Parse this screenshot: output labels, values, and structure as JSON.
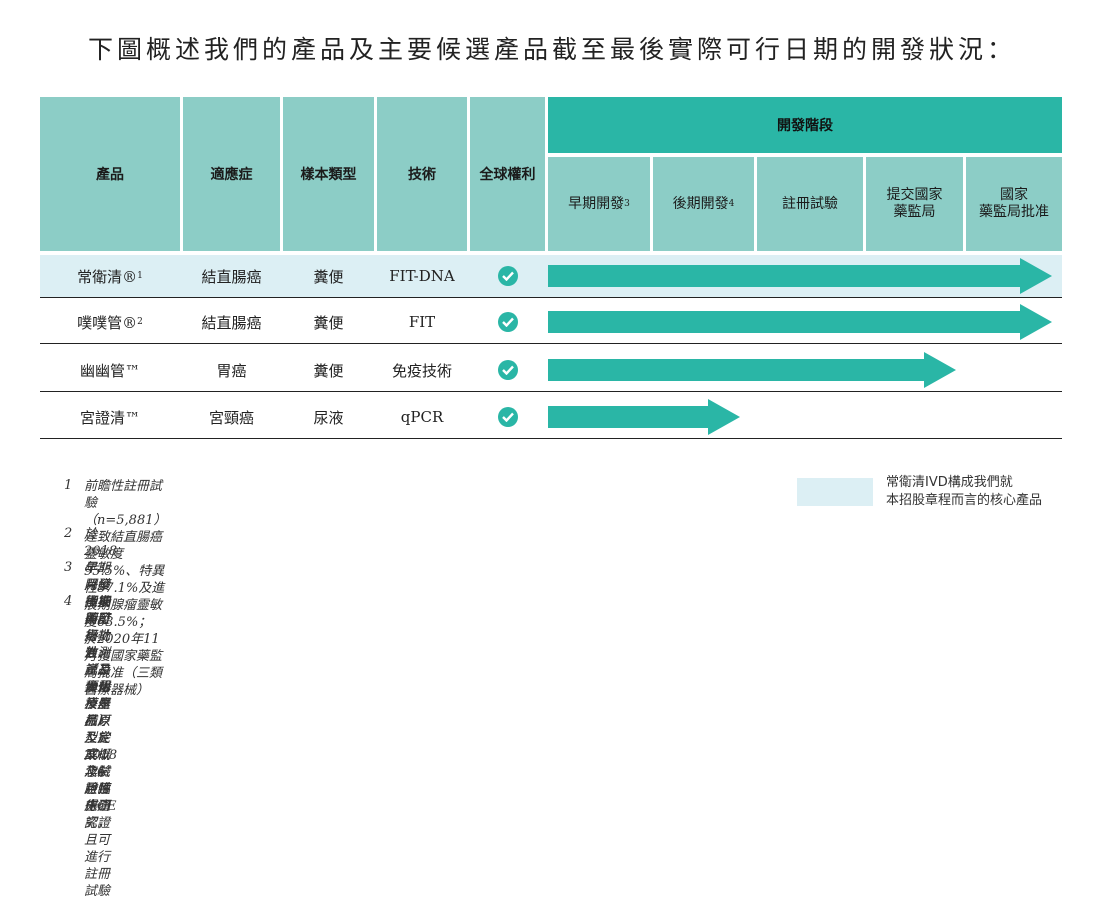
{
  "title": "下圖概述我們的產品及主要候選產品截至最後實際可行日期的開發狀況：",
  "headers": {
    "product": "產品",
    "indication": "適應症",
    "sample_type": "樣本類型",
    "technology": "技術",
    "global_rights": "全球權利",
    "stages_title": "開發階段"
  },
  "stages": [
    {
      "label": "早期開發",
      "note": "3"
    },
    {
      "label": "後期開發",
      "note": "4"
    },
    {
      "label": "註冊試驗",
      "note": ""
    },
    {
      "label": "提交國家\n藥監局",
      "note": ""
    },
    {
      "label": "國家\n藥監局批准",
      "note": ""
    }
  ],
  "rows": [
    {
      "product": "常衛清®",
      "note": "1",
      "indication": "結直腸癌",
      "sample": "糞便",
      "technology": "FIT-DNA",
      "global_rights": true,
      "progress": "國家藥監局批准",
      "core": true
    },
    {
      "product": "噗噗管®",
      "note": "2",
      "indication": "結直腸癌",
      "sample": "糞便",
      "technology": "FIT",
      "global_rights": true,
      "progress": "國家藥監局批准",
      "core": false
    },
    {
      "product": "幽幽管™",
      "note": "",
      "indication": "胃癌",
      "sample": "糞便",
      "technology": "免疫技術",
      "global_rights": true,
      "progress": "提交國家藥監局",
      "core": false
    },
    {
      "product": "宮證清™",
      "note": "",
      "indication": "宮頸癌",
      "sample": "尿液",
      "technology": "qPCR",
      "global_rights": true,
      "progress": "後期開發",
      "core": false
    }
  ],
  "footnotes": [
    {
      "num": "1",
      "text": "前瞻性註冊試驗（n=5,881）達致結直腸癌靈敏度95.5%、特異性87.1%及進展期腺瘤靈敏度63.5%；\n於2020年11月獲國家藥監局批准（三類醫療器械）"
    },
    {
      "num": "2",
      "text": "於2018年3月獲國家藥監局批准（二類醫療器械）及於2018年6月獲得CE認證"
    },
    {
      "num": "3",
      "text": "早期開發指技術可行性、產品優化及產品原型定案以及試驗性生產"
    },
    {
      "num": "4",
      "text": "後期開發指功效測試及大規模生產以及完成概念驗證臨床研究，且可進行註冊試驗"
    }
  ],
  "legend": {
    "text": "常衛清IVD構成我們就\n本招股章程而言的核心產品",
    "color": "#dceff4"
  },
  "colors": {
    "teal_dark": "#2ab6a6",
    "teal_light": "#8ccdc6",
    "core_row": "#dceff4"
  }
}
